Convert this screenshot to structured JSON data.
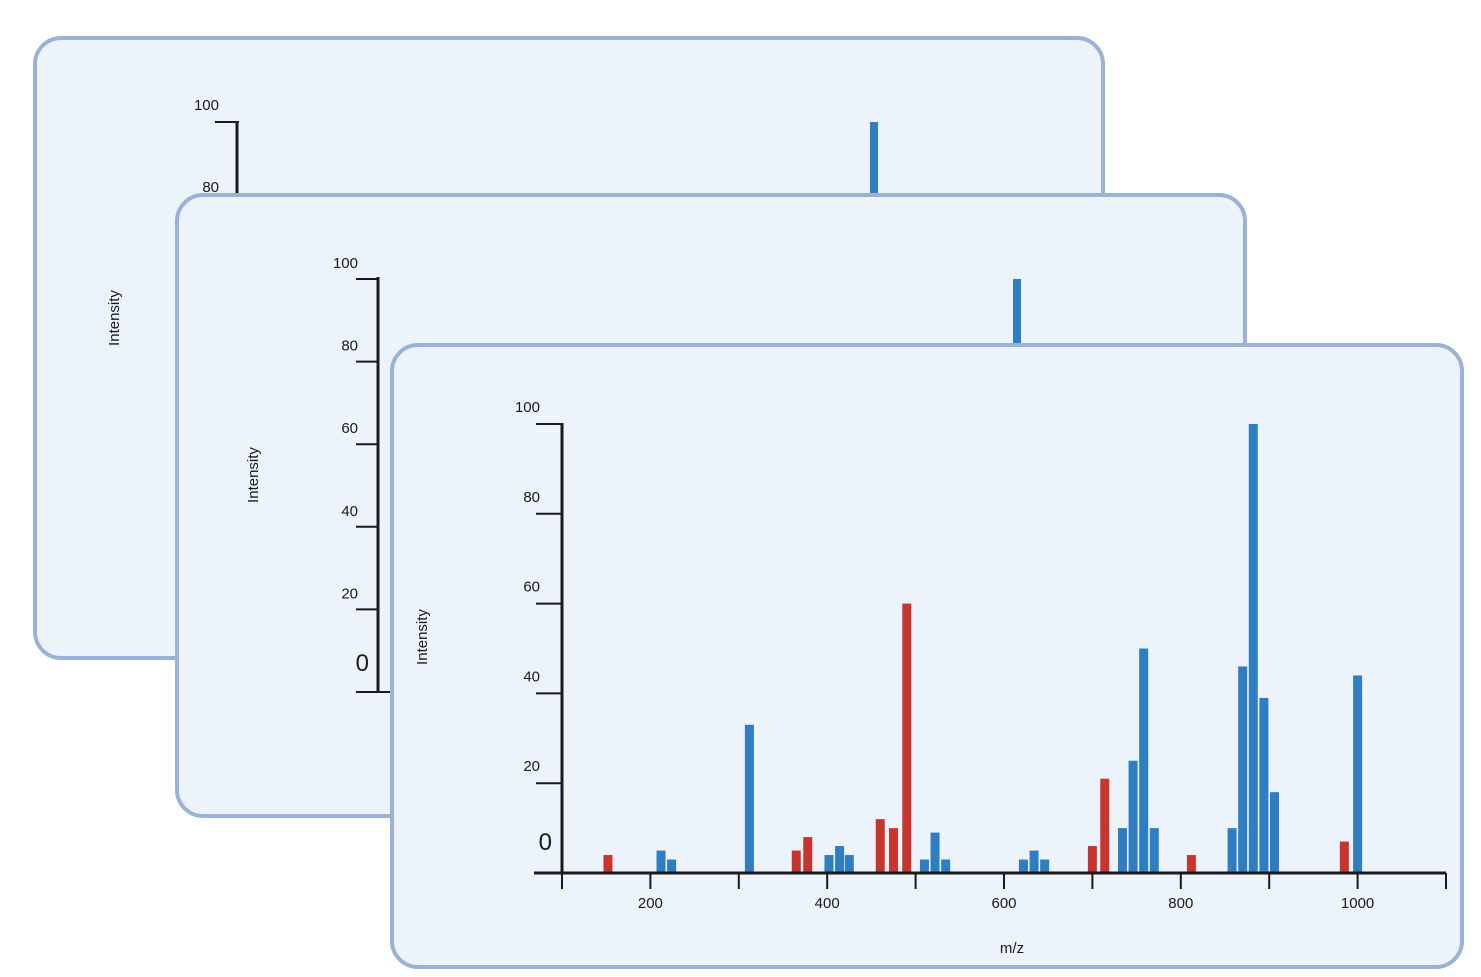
{
  "colors": {
    "card_background": "#ecf3fb",
    "card_border": "#9bb2d8",
    "axis": "#1a1a1a",
    "blue_peak": "#2f7ec4",
    "red_peak": "#c8352f"
  },
  "back_panel": {
    "ylabel": "Intensity",
    "y_ticks": [
      "100",
      "80"
    ],
    "peak_value": 100
  },
  "middle_panel": {
    "ylabel": "Intensity",
    "y_ticks": [
      "100",
      "80",
      "60",
      "40",
      "20"
    ],
    "zero_label": "0",
    "peak_value": 100
  },
  "chart_data": {
    "type": "bar",
    "title": "",
    "xlabel": "m/z",
    "ylabel": "Intensity",
    "xlim": [
      100,
      1100
    ],
    "ylim": [
      0,
      100
    ],
    "y_ticks": [
      100,
      80,
      60,
      40,
      20
    ],
    "zero_label": "0",
    "x_ticks": [
      200,
      400,
      600,
      800,
      1000
    ],
    "series": [
      {
        "color": "#c8352f",
        "peaks": [
          {
            "mz": 152,
            "intensity": 4
          },
          {
            "mz": 365,
            "intensity": 5
          },
          {
            "mz": 378,
            "intensity": 8
          },
          {
            "mz": 460,
            "intensity": 12
          },
          {
            "mz": 475,
            "intensity": 10
          },
          {
            "mz": 490,
            "intensity": 60
          },
          {
            "mz": 700,
            "intensity": 6
          },
          {
            "mz": 714,
            "intensity": 21
          },
          {
            "mz": 812,
            "intensity": 4
          },
          {
            "mz": 985,
            "intensity": 7
          }
        ]
      },
      {
        "color": "#2f7ec4",
        "peaks": [
          {
            "mz": 212,
            "intensity": 5
          },
          {
            "mz": 224,
            "intensity": 3
          },
          {
            "mz": 312,
            "intensity": 33
          },
          {
            "mz": 402,
            "intensity": 4
          },
          {
            "mz": 414,
            "intensity": 6
          },
          {
            "mz": 425,
            "intensity": 4
          },
          {
            "mz": 510,
            "intensity": 3
          },
          {
            "mz": 522,
            "intensity": 9
          },
          {
            "mz": 534,
            "intensity": 3
          },
          {
            "mz": 622,
            "intensity": 3
          },
          {
            "mz": 634,
            "intensity": 5
          },
          {
            "mz": 646,
            "intensity": 3
          },
          {
            "mz": 734,
            "intensity": 10
          },
          {
            "mz": 746,
            "intensity": 25
          },
          {
            "mz": 758,
            "intensity": 50
          },
          {
            "mz": 770,
            "intensity": 10
          },
          {
            "mz": 858,
            "intensity": 10
          },
          {
            "mz": 870,
            "intensity": 46
          },
          {
            "mz": 882,
            "intensity": 100
          },
          {
            "mz": 894,
            "intensity": 39
          },
          {
            "mz": 906,
            "intensity": 18
          },
          {
            "mz": 1000,
            "intensity": 44
          }
        ]
      }
    ]
  }
}
